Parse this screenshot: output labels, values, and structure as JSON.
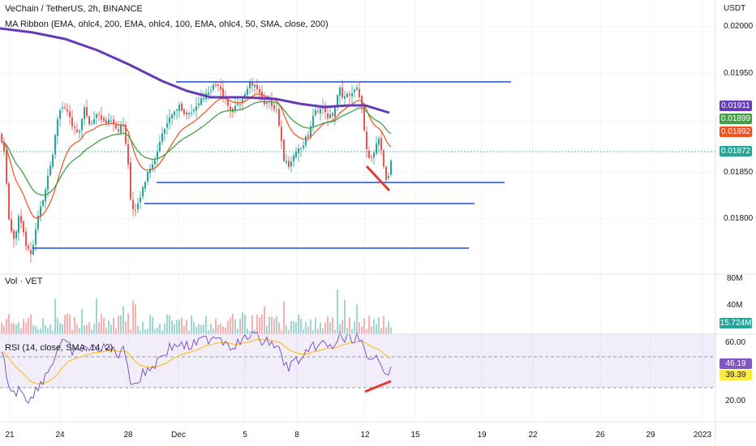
{
  "header": {
    "symbol_line": "VeChain / TetherUS, 2h, BINANCE",
    "indicator_line": "MA Ribbon (EMA, ohlc4, 200, EMA, ohlc4, 100, EMA, ohlc4, 50, SMA, close, 200)",
    "currency": "USDT"
  },
  "price_axis": {
    "ticks": [
      "0.02000",
      "0.01950",
      "0.01850",
      "0.01800"
    ],
    "tags": [
      {
        "label": "0.01911",
        "color": "#673ab7"
      },
      {
        "label": "0.01899",
        "color": "#43a047"
      },
      {
        "label": "0.01892",
        "color": "#f4511e"
      },
      {
        "label": "0.01872",
        "color": "#26a69a"
      }
    ]
  },
  "volume_pane": {
    "label": "Vol · VET",
    "ticks": [
      "80M",
      "40M"
    ],
    "tag": {
      "label": "15.724M",
      "color": "#26a69a"
    }
  },
  "rsi_pane": {
    "label": "RSI (14, close, SMA, 14, 2)",
    "ticks": [
      "60.00",
      "20.00"
    ],
    "tags": [
      {
        "label": "46.19",
        "color": "#7e57c2",
        "text_color": "#ffffff"
      },
      {
        "label": "39.39",
        "color": "#ffeb3b",
        "text_color": "#131722"
      }
    ]
  },
  "time_axis": [
    "21",
    "24",
    "28",
    "Dec",
    "5",
    "8",
    "12",
    "15",
    "19",
    "22",
    "26",
    "29",
    "2023"
  ],
  "colors": {
    "up": "#26a69a",
    "down": "#ef5350",
    "ema200": "#673ab7",
    "ema100": "#43a047",
    "ema50": "#f4511e",
    "levels": "#1e4fd8",
    "divergence": "#e53935",
    "rsi": "#7e57c2",
    "rsi_ma": "#fbc02d"
  }
}
